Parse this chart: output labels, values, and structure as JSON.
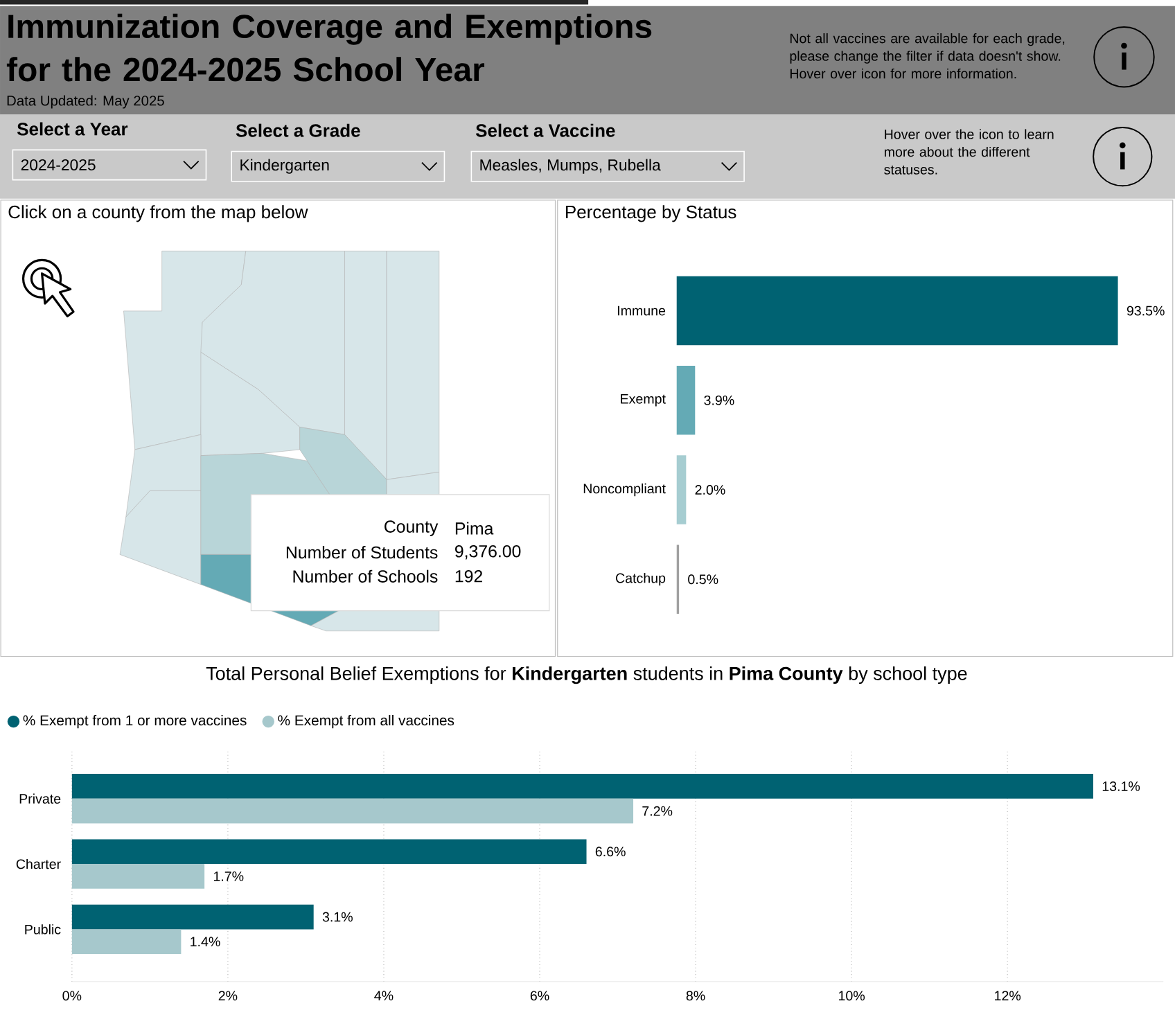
{
  "chart_data": [
    {
      "type": "other",
      "title": "Immunization Coverage and Exemptions for the 2024-2025 School Year",
      "subtitle": "Data Updated: May 2025",
      "annotations": [
        "Not all vaccines are available for each grade, please change the filter if data doesn't show. Hover over icon for more information.",
        "Select a Year",
        "2024-2025",
        "Select a Grade",
        "Kindergarten",
        "Select a Vaccine",
        "Measles, Mumps, Rubella",
        "Hover over the icon to learn more about the different statuses.",
        "Click on a county from the map below",
        "County",
        "Pima",
        "Number of Students",
        "9,376.00",
        "Number of Schools",
        "192"
      ]
    },
    {
      "type": "bar",
      "orientation": "horizontal",
      "title": "Percentage by Status",
      "categories": [
        "Immune",
        "Exempt",
        "Noncompliant",
        "Catchup"
      ],
      "values": [
        93.5,
        3.9,
        2.0,
        0.5
      ],
      "colors": [
        "#006272",
        "#64aab5",
        "#a6cdd1",
        "#a0a0a0"
      ],
      "value_labels": [
        "93.5%",
        "3.9%",
        "2.0%",
        "0.5%"
      ],
      "tick_labels": "y"
    },
    {
      "type": "bar",
      "orientation": "horizontal",
      "title": "Total Personal Belief Exemptions for **Kindergarten** students in **Pima County** by school type",
      "categories": [
        "Private",
        "Charter",
        "Public"
      ],
      "series": [
        {
          "name": "% Exempt from 1 or more vaccines",
          "color": "#006272",
          "values": [
            13.1,
            6.6,
            3.1
          ],
          "value_labels": [
            "13.1%",
            "6.6%",
            "3.1%"
          ]
        },
        {
          "name": "% Exempt from all vaccines",
          "color": "#a6c8cc",
          "values": [
            7.2,
            1.7,
            1.4
          ],
          "value_labels": [
            "7.2%",
            "1.7%",
            "1.4%"
          ]
        }
      ],
      "xlim": [
        0,
        14
      ],
      "xticks": [
        {
          "value": 0,
          "label": "0%"
        },
        {
          "value": 2,
          "label": "2%"
        },
        {
          "value": 4,
          "label": "4%"
        },
        {
          "value": 6,
          "label": "6%"
        },
        {
          "value": 8,
          "label": "8%"
        },
        {
          "value": 10,
          "label": "10%"
        },
        {
          "value": 12,
          "label": "12%"
        }
      ],
      "grid": "x",
      "legend": "top left"
    }
  ]
}
